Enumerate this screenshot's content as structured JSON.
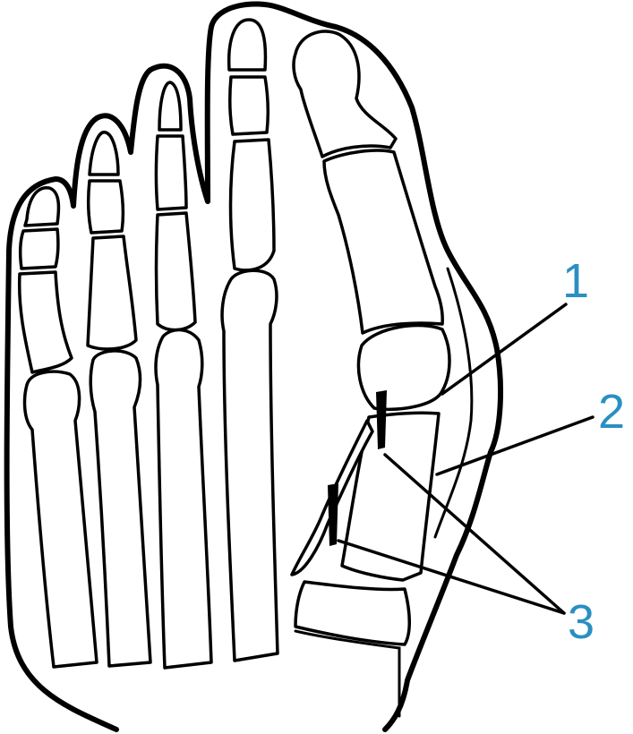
{
  "colors": {
    "callout_color": "#2a8fc1",
    "line_color": "#000000",
    "background": "#ffffff"
  },
  "callouts": [
    {
      "text": "1"
    },
    {
      "text": "2"
    },
    {
      "text": "3"
    }
  ]
}
